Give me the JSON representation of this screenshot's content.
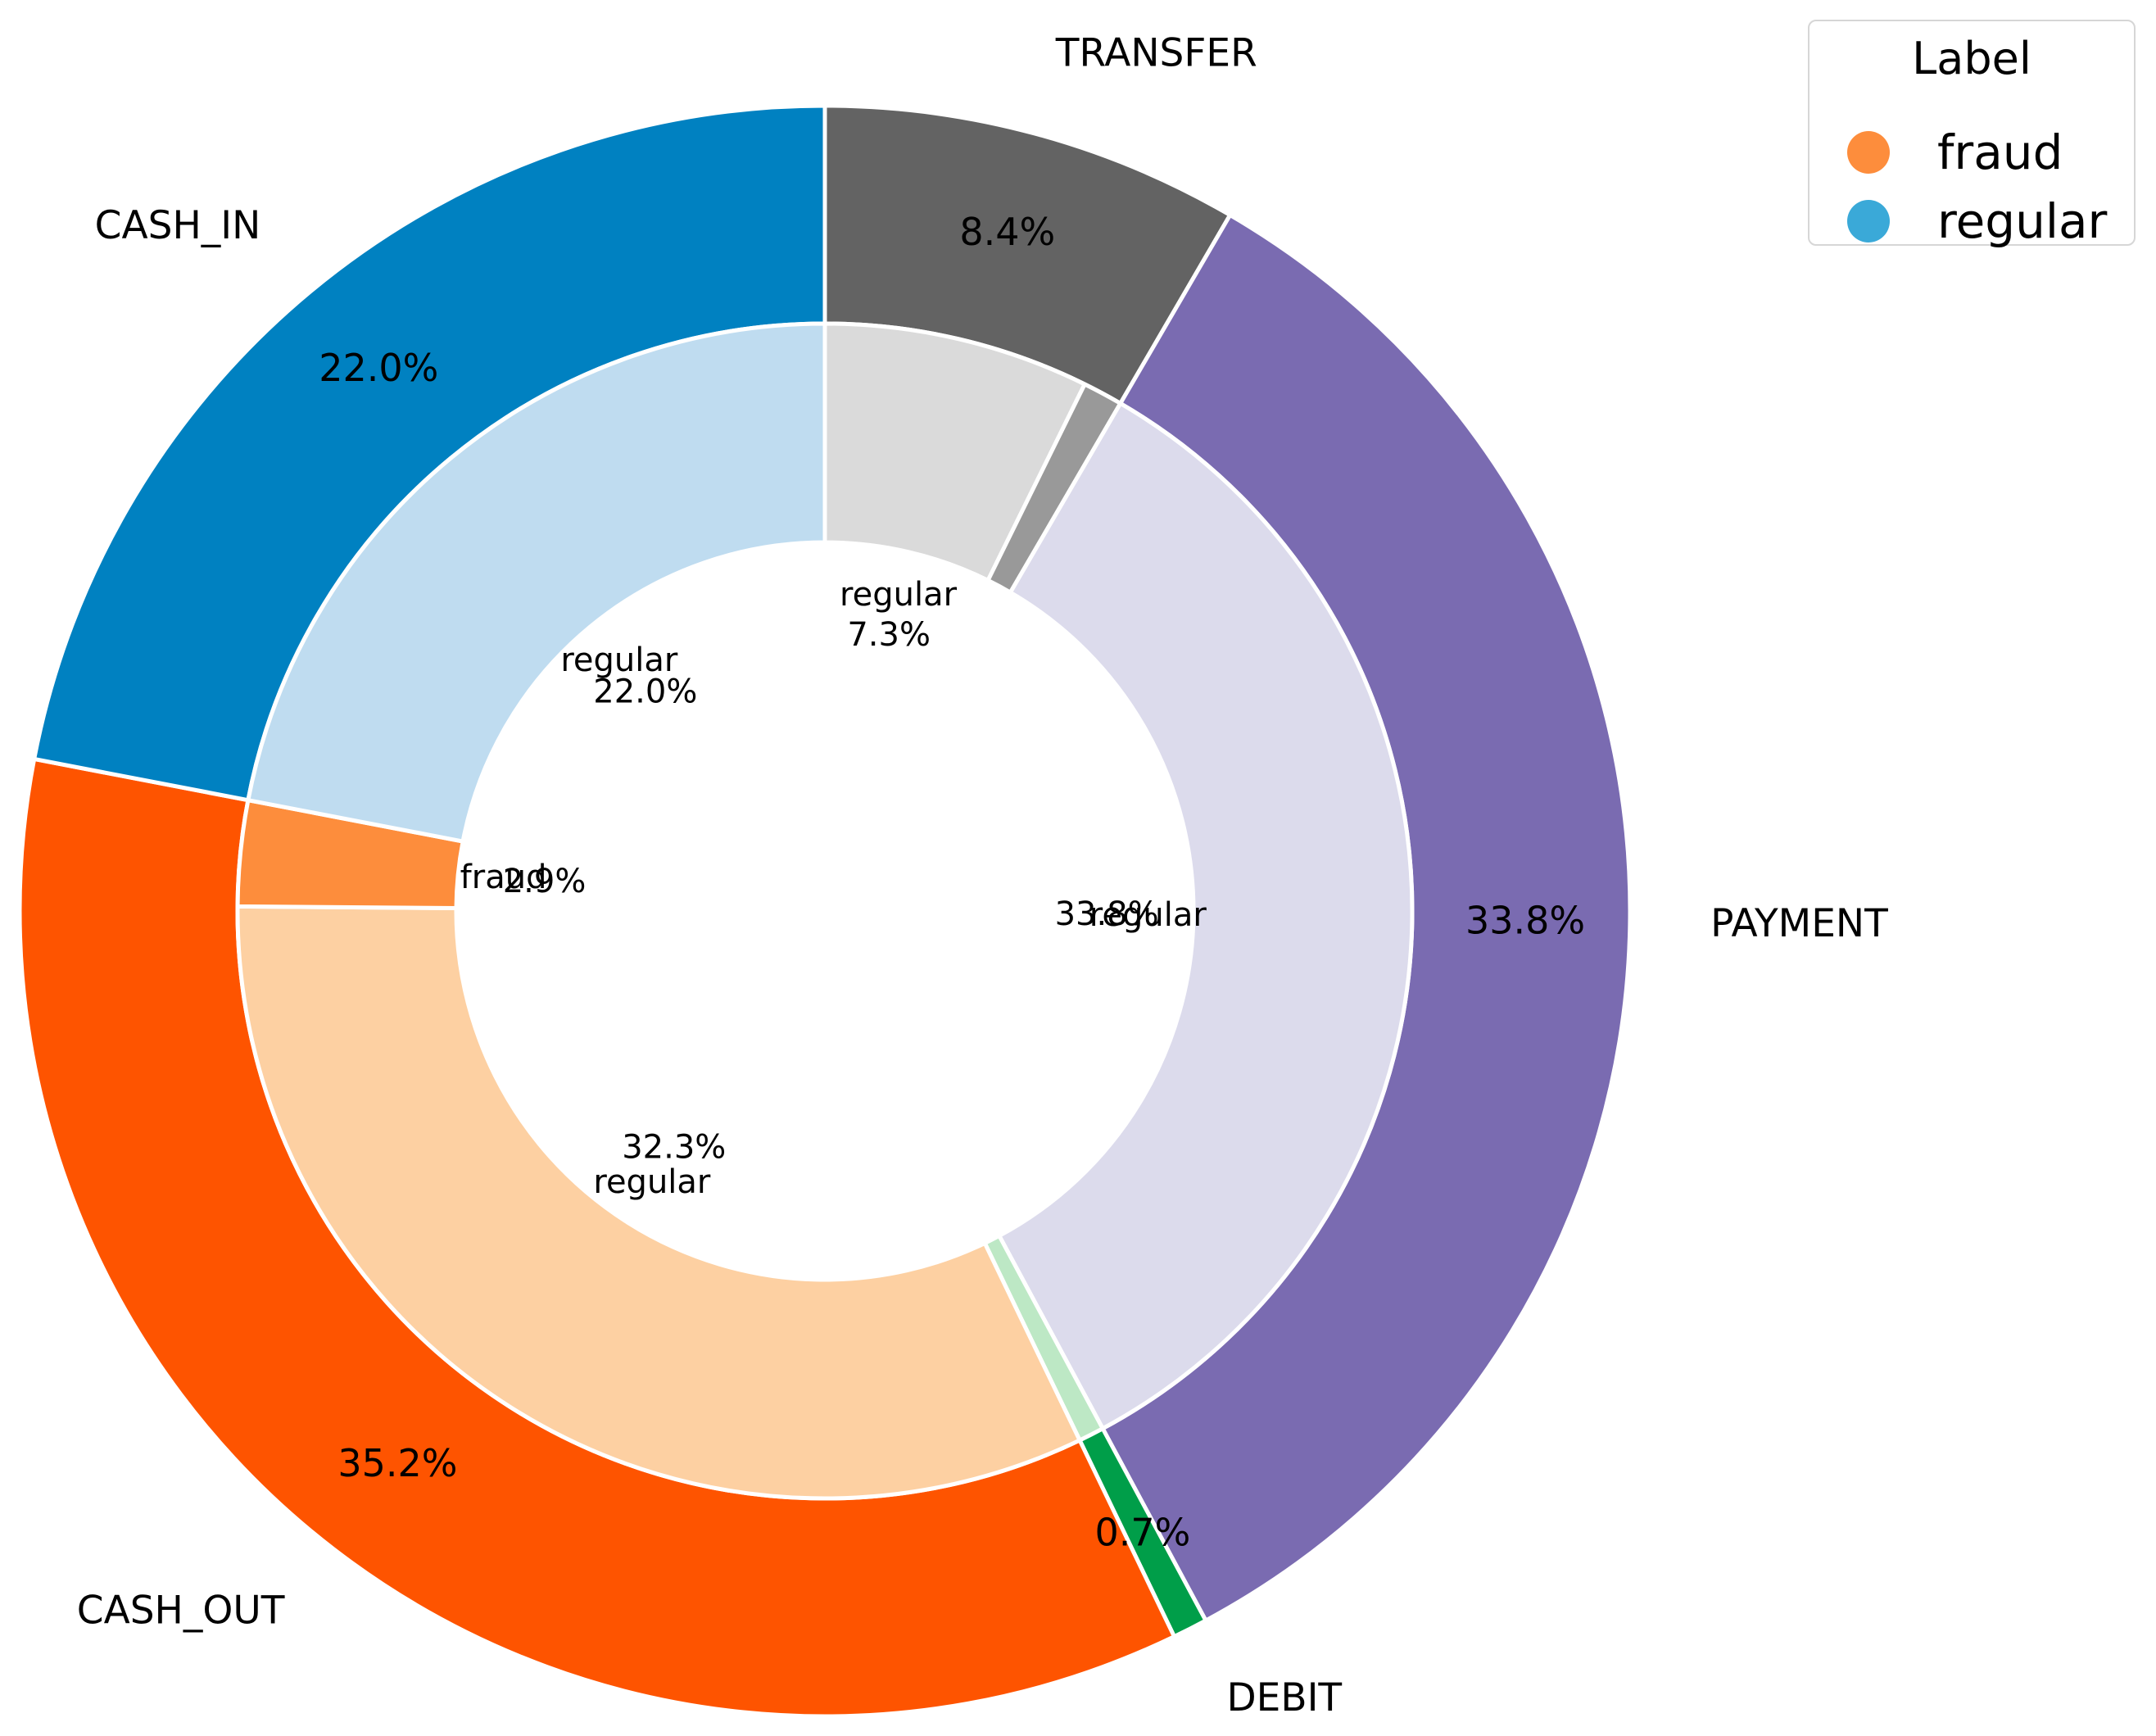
{
  "chart_data": {
    "type": "nested-pie",
    "legend": {
      "title": "Label",
      "placement": "top-right",
      "entries": [
        {
          "label": "fraud",
          "color": "#fd8d3c"
        },
        {
          "label": "regular",
          "color": "#3aa9d8"
        }
      ]
    },
    "outer_ring": [
      {
        "category": "TRANSFER",
        "percent_label": "8.4%",
        "value": 8.4,
        "color": "#636363"
      },
      {
        "category": "PAYMENT",
        "percent_label": "33.8%",
        "value": 33.8,
        "color": "#7a6bb1"
      },
      {
        "category": "DEBIT",
        "percent_label": "0.7%",
        "value": 0.7,
        "color": "#009e49"
      },
      {
        "category": "CASH_OUT",
        "percent_label": "35.2%",
        "value": 35.2,
        "color": "#fe5400"
      },
      {
        "category": "CASH_IN",
        "percent_label": "22.0%",
        "value": 22.0,
        "color": "#0081c1"
      }
    ],
    "inner_ring": [
      {
        "parent": "TRANSFER",
        "label": "regular",
        "percent_label": "7.3%",
        "value": 7.3,
        "color": "#dadada"
      },
      {
        "parent": "TRANSFER",
        "label": "",
        "percent_label": "",
        "value": 1.1,
        "color": "#999999"
      },
      {
        "parent": "PAYMENT",
        "label": "regular",
        "percent_label": "33.8%",
        "value": 33.8,
        "color": "#dcdbec"
      },
      {
        "parent": "DEBIT",
        "label": "",
        "percent_label": "",
        "value": 0.7,
        "color": "#bde8c5"
      },
      {
        "parent": "CASH_OUT",
        "label": "regular",
        "percent_label": "32.3%",
        "value": 32.3,
        "color": "#fdd0a2"
      },
      {
        "parent": "CASH_OUT",
        "label": "fraud",
        "percent_label": "2.9%",
        "value": 2.9,
        "color": "#fd8d3c"
      },
      {
        "parent": "CASH_IN",
        "label": "regular",
        "percent_label": "22.0%",
        "value": 22.0,
        "color": "#bfdcf0"
      }
    ],
    "start_angle_deg": 90,
    "direction": "clockwise"
  }
}
